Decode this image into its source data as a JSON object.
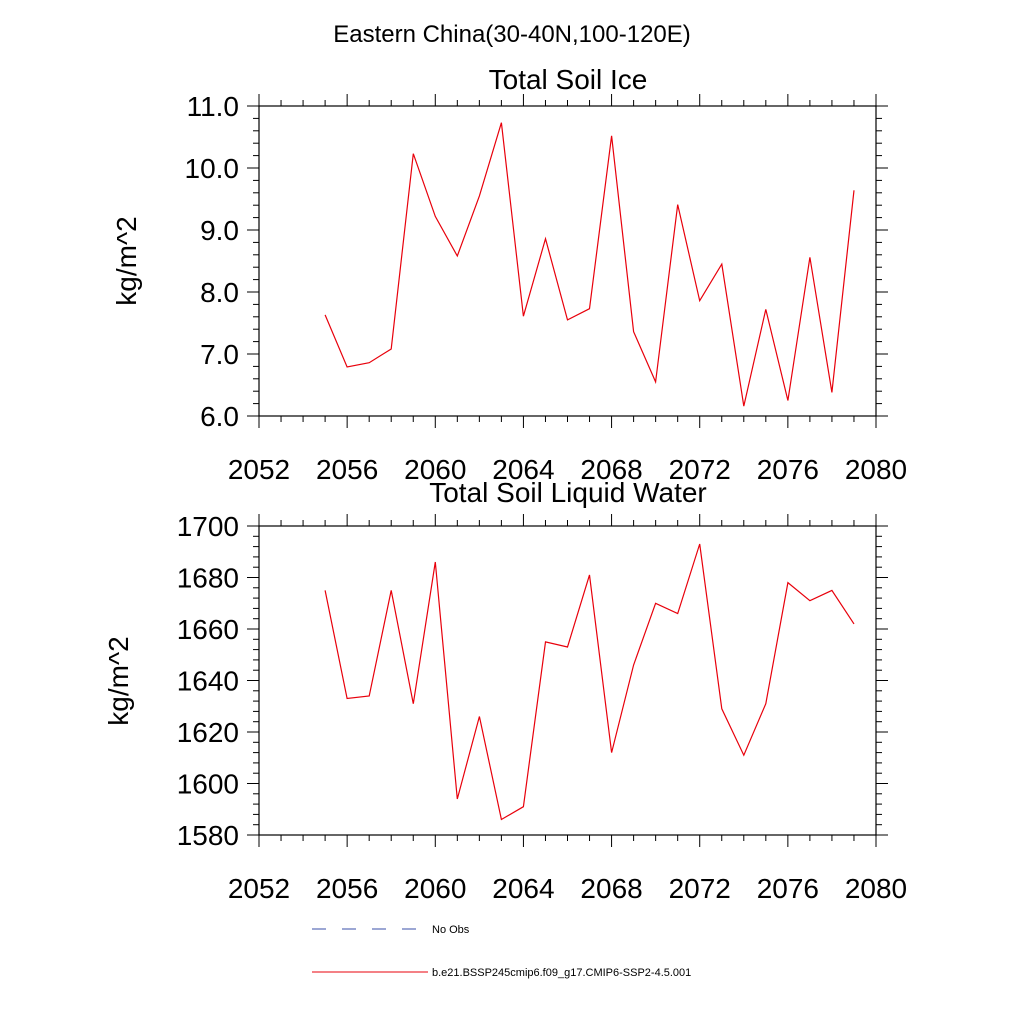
{
  "figure": {
    "title": "Eastern China(30-40N,100-120E)"
  },
  "colors": {
    "series_line": "#e8000b",
    "obs_line": "#3a4fa8",
    "axis": "#000000",
    "background": "#ffffff"
  },
  "chart_data": [
    {
      "type": "line",
      "title": "Total Soil Ice",
      "xlabel": "",
      "ylabel": "kg/m^2",
      "xlim": [
        2052,
        2080
      ],
      "ylim": [
        6.0,
        11.0
      ],
      "x_ticks": [
        "2052",
        "2056",
        "2060",
        "2064",
        "2068",
        "2072",
        "2076",
        "2080"
      ],
      "y_ticks": [
        "6.0",
        "7.0",
        "8.0",
        "9.0",
        "10.0",
        "11.0"
      ],
      "grid": false,
      "x": [
        2055,
        2056,
        2057,
        2058,
        2059,
        2060,
        2061,
        2062,
        2063,
        2064,
        2065,
        2066,
        2067,
        2068,
        2069,
        2070,
        2071,
        2072,
        2073,
        2074,
        2075,
        2076,
        2077,
        2078,
        2079
      ],
      "series": [
        {
          "name": "b.e21.BSSP245cmip6.f09_g17.CMIP6-SSP2-4.5.001",
          "values": [
            7.63,
            6.79,
            6.86,
            7.08,
            10.23,
            9.22,
            8.58,
            9.55,
            10.73,
            7.61,
            8.86,
            7.55,
            7.73,
            10.52,
            7.36,
            6.55,
            9.41,
            7.86,
            8.45,
            6.16,
            7.72,
            6.25,
            8.56,
            6.38,
            9.64
          ]
        }
      ]
    },
    {
      "type": "line",
      "title": "Total Soil Liquid Water",
      "xlabel": "",
      "ylabel": "kg/m^2",
      "xlim": [
        2052,
        2080
      ],
      "ylim": [
        1580,
        1700
      ],
      "x_ticks": [
        "2052",
        "2056",
        "2060",
        "2064",
        "2068",
        "2072",
        "2076",
        "2080"
      ],
      "y_ticks": [
        "1580",
        "1600",
        "1620",
        "1640",
        "1660",
        "1680",
        "1700"
      ],
      "grid": false,
      "x": [
        2055,
        2056,
        2057,
        2058,
        2059,
        2060,
        2061,
        2062,
        2063,
        2064,
        2065,
        2066,
        2067,
        2068,
        2069,
        2070,
        2071,
        2072,
        2073,
        2074,
        2075,
        2076,
        2077,
        2078,
        2079
      ],
      "series": [
        {
          "name": "b.e21.BSSP245cmip6.f09_g17.CMIP6-SSP2-4.5.001",
          "values": [
            1675,
            1633,
            1634,
            1675,
            1631,
            1686,
            1594,
            1626,
            1586,
            1591,
            1655,
            1653,
            1681,
            1612,
            1646,
            1670,
            1666,
            1693,
            1629,
            1611,
            1631,
            1678,
            1671,
            1675,
            1662
          ]
        }
      ]
    }
  ],
  "legend": {
    "placement": "bottom",
    "items": [
      {
        "label": "No Obs",
        "style": "dashed"
      },
      {
        "label": "b.e21.BSSP245cmip6.f09_g17.CMIP6-SSP2-4.5.001",
        "style": "solid"
      }
    ]
  }
}
